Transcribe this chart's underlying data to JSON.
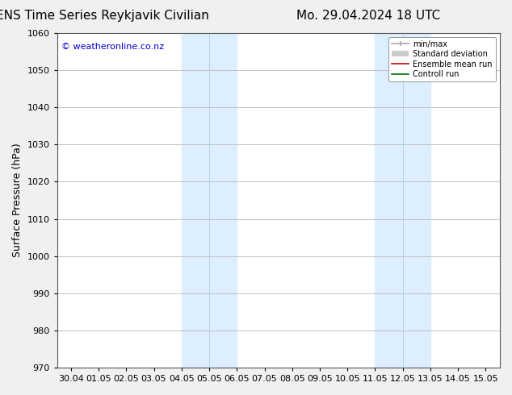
{
  "title_left": "ENS Time Series Reykjavik Civilian",
  "title_right": "Mo. 29.04.2024 18 UTC",
  "ylabel": "Surface Pressure (hPa)",
  "ylim": [
    970,
    1060
  ],
  "yticks": [
    970,
    980,
    990,
    1000,
    1010,
    1020,
    1030,
    1040,
    1050,
    1060
  ],
  "xtick_labels": [
    "30.04",
    "01.05",
    "02.05",
    "03.05",
    "04.05",
    "05.05",
    "06.05",
    "07.05",
    "08.05",
    "09.05",
    "10.05",
    "11.05",
    "12.05",
    "13.05",
    "14.05",
    "15.05"
  ],
  "xtick_positions": [
    0,
    1,
    2,
    3,
    4,
    5,
    6,
    7,
    8,
    9,
    10,
    11,
    12,
    13,
    14,
    15
  ],
  "shaded_bands": [
    {
      "x_start": 4.0,
      "x_end": 5.0
    },
    {
      "x_start": 5.0,
      "x_end": 6.0
    },
    {
      "x_start": 11.0,
      "x_end": 12.0
    },
    {
      "x_start": 12.0,
      "x_end": 13.0
    }
  ],
  "shade_color": "#ddeeff",
  "watermark_text": "© weatheronline.co.nz",
  "watermark_color": "#0000cc",
  "background_color": "#f0f0f0",
  "plot_bg_color": "#ffffff",
  "grid_color": "#c0c0c0",
  "legend_items": [
    {
      "label": "min/max"
    },
    {
      "label": "Standard deviation"
    },
    {
      "label": "Ensemble mean run"
    },
    {
      "label": "Controll run"
    }
  ],
  "title_fontsize": 11,
  "axis_fontsize": 9,
  "tick_fontsize": 8,
  "watermark_fontsize": 8
}
